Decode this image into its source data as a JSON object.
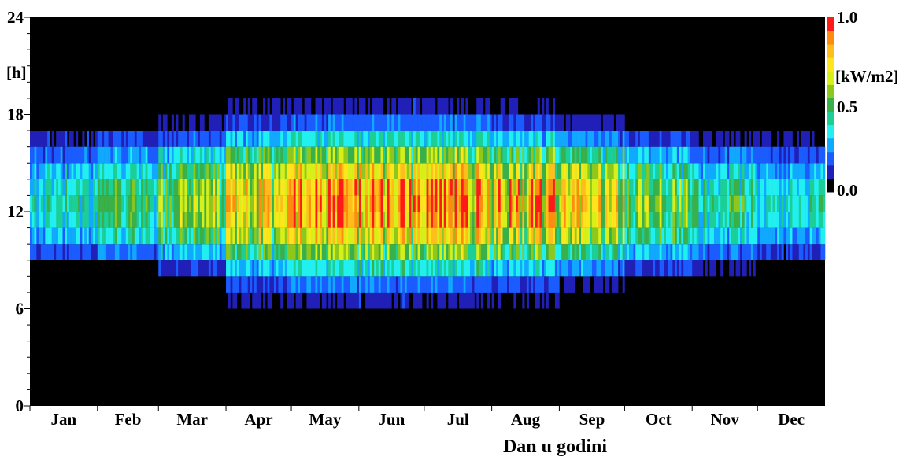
{
  "chart_data": {
    "type": "heatmap",
    "title": "",
    "xlabel": "Dan u godini",
    "ylabel": "[h]",
    "x_range": [
      1,
      365
    ],
    "y_range": [
      0,
      24
    ],
    "months": [
      "Jan",
      "Feb",
      "Mar",
      "Apr",
      "May",
      "Jun",
      "Jul",
      "Aug",
      "Sep",
      "Oct",
      "Nov",
      "Dec"
    ],
    "y_ticks": [
      "0",
      "6",
      "12",
      "18",
      "24"
    ],
    "colorbar": {
      "unit": "[kW/m2]",
      "min_label": "0.0",
      "mid_label": "0.5",
      "max_label": "1.0",
      "range": [
        0,
        1
      ],
      "colors": [
        "#000000",
        "#2020b8",
        "#1a5cff",
        "#11a8ff",
        "#22f0f0",
        "#1ccf96",
        "#3ab04a",
        "#8ec81c",
        "#d8f01a",
        "#ffe61c",
        "#ffbe1c",
        "#ff8c10",
        "#ff1a1a"
      ]
    },
    "hourly_irradiance_by_month_kW_m2": {
      "hours": [
        6,
        7,
        8,
        9,
        10,
        11,
        12,
        13,
        14,
        15,
        16,
        17,
        18
      ],
      "Jan": [
        0,
        0,
        0,
        0.12,
        0.28,
        0.36,
        0.42,
        0.36,
        0.28,
        0.16,
        0.05,
        0,
        0
      ],
      "Feb": [
        0,
        0,
        0,
        0.18,
        0.36,
        0.46,
        0.5,
        0.46,
        0.36,
        0.22,
        0.1,
        0,
        0
      ],
      "Mar": [
        0,
        0,
        0.08,
        0.28,
        0.48,
        0.6,
        0.64,
        0.6,
        0.5,
        0.34,
        0.14,
        0.03,
        0
      ],
      "Apr": [
        0.02,
        0.1,
        0.26,
        0.48,
        0.66,
        0.76,
        0.8,
        0.76,
        0.66,
        0.48,
        0.26,
        0.08,
        0.02
      ],
      "May": [
        0.04,
        0.16,
        0.34,
        0.56,
        0.74,
        0.86,
        0.9,
        0.86,
        0.74,
        0.56,
        0.34,
        0.14,
        0.04
      ],
      "Jun": [
        0.05,
        0.18,
        0.36,
        0.58,
        0.76,
        0.88,
        0.92,
        0.88,
        0.76,
        0.58,
        0.36,
        0.16,
        0.05
      ],
      "Jul": [
        0.04,
        0.16,
        0.36,
        0.58,
        0.78,
        0.9,
        0.93,
        0.9,
        0.78,
        0.58,
        0.36,
        0.16,
        0.04
      ],
      "Aug": [
        0.02,
        0.1,
        0.3,
        0.52,
        0.72,
        0.84,
        0.88,
        0.84,
        0.72,
        0.52,
        0.3,
        0.1,
        0.02
      ],
      "Sep": [
        0,
        0.04,
        0.2,
        0.42,
        0.62,
        0.74,
        0.78,
        0.74,
        0.62,
        0.42,
        0.2,
        0.05,
        0
      ],
      "Oct": [
        0,
        0,
        0.1,
        0.28,
        0.46,
        0.56,
        0.6,
        0.56,
        0.46,
        0.28,
        0.1,
        0,
        0
      ],
      "Nov": [
        0,
        0,
        0.03,
        0.16,
        0.3,
        0.4,
        0.44,
        0.4,
        0.3,
        0.16,
        0.04,
        0,
        0
      ],
      "Dec": [
        0,
        0,
        0,
        0.1,
        0.24,
        0.34,
        0.38,
        0.34,
        0.24,
        0.12,
        0.03,
        0,
        0
      ]
    }
  }
}
